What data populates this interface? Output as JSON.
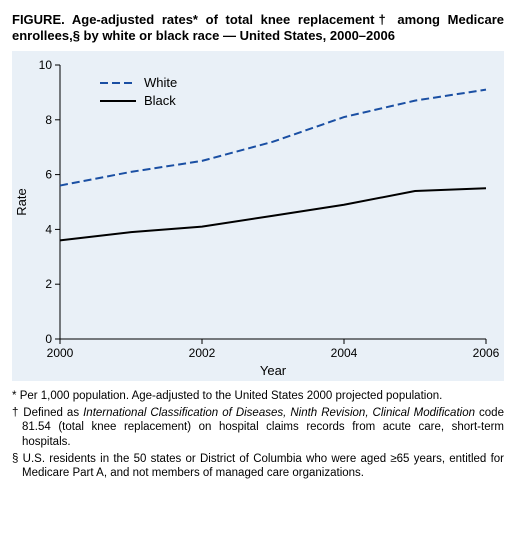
{
  "title": "FIGURE. Age-adjusted rates* of total knee replacement† among Medicare enrollees,§ by white or black race — United States, 2000–2006",
  "chart": {
    "type": "line",
    "background_color": "#e9f0f7",
    "plot_border_color": "#000000",
    "xlabel": "Year",
    "ylabel": "Rate",
    "label_fontsize": 13,
    "tick_fontsize": 12,
    "xlim": [
      2000,
      2006
    ],
    "ylim": [
      0,
      10
    ],
    "xticks": [
      2000,
      2002,
      2004,
      2006
    ],
    "yticks": [
      0,
      2,
      4,
      6,
      8,
      10
    ],
    "series": [
      {
        "name": "White",
        "color": "#1a4fa3",
        "dash": "8 4",
        "width": 2,
        "x": [
          2000,
          2001,
          2002,
          2003,
          2004,
          2005,
          2006
        ],
        "y": [
          5.6,
          6.1,
          6.5,
          7.2,
          8.1,
          8.7,
          9.1
        ]
      },
      {
        "name": "Black",
        "color": "#000000",
        "dash": "none",
        "width": 2,
        "x": [
          2000,
          2001,
          2002,
          2003,
          2004,
          2005,
          2006
        ],
        "y": [
          3.6,
          3.9,
          4.1,
          4.5,
          4.9,
          5.4,
          5.5
        ]
      }
    ],
    "legend": {
      "position": "top-left-inside",
      "items": [
        "White",
        "Black"
      ]
    }
  },
  "footnotes": {
    "f1_marker": "*",
    "f1_text": "Per 1,000 population. Age-adjusted to the United States 2000 projected population.",
    "f2_marker": "†",
    "f2_pre": "Defined as ",
    "f2_italic": "International Classification of Diseases, Ninth Revision, Clinical Modification",
    "f2_post": " code 81.54 (total knee replacement) on hospital claims records from acute care, short-term hospitals.",
    "f3_marker": "§",
    "f3_text": "U.S. residents in the 50 states or District of Columbia who were aged ≥65 years, entitled for Medicare Part A, and not members of managed care organizations."
  }
}
